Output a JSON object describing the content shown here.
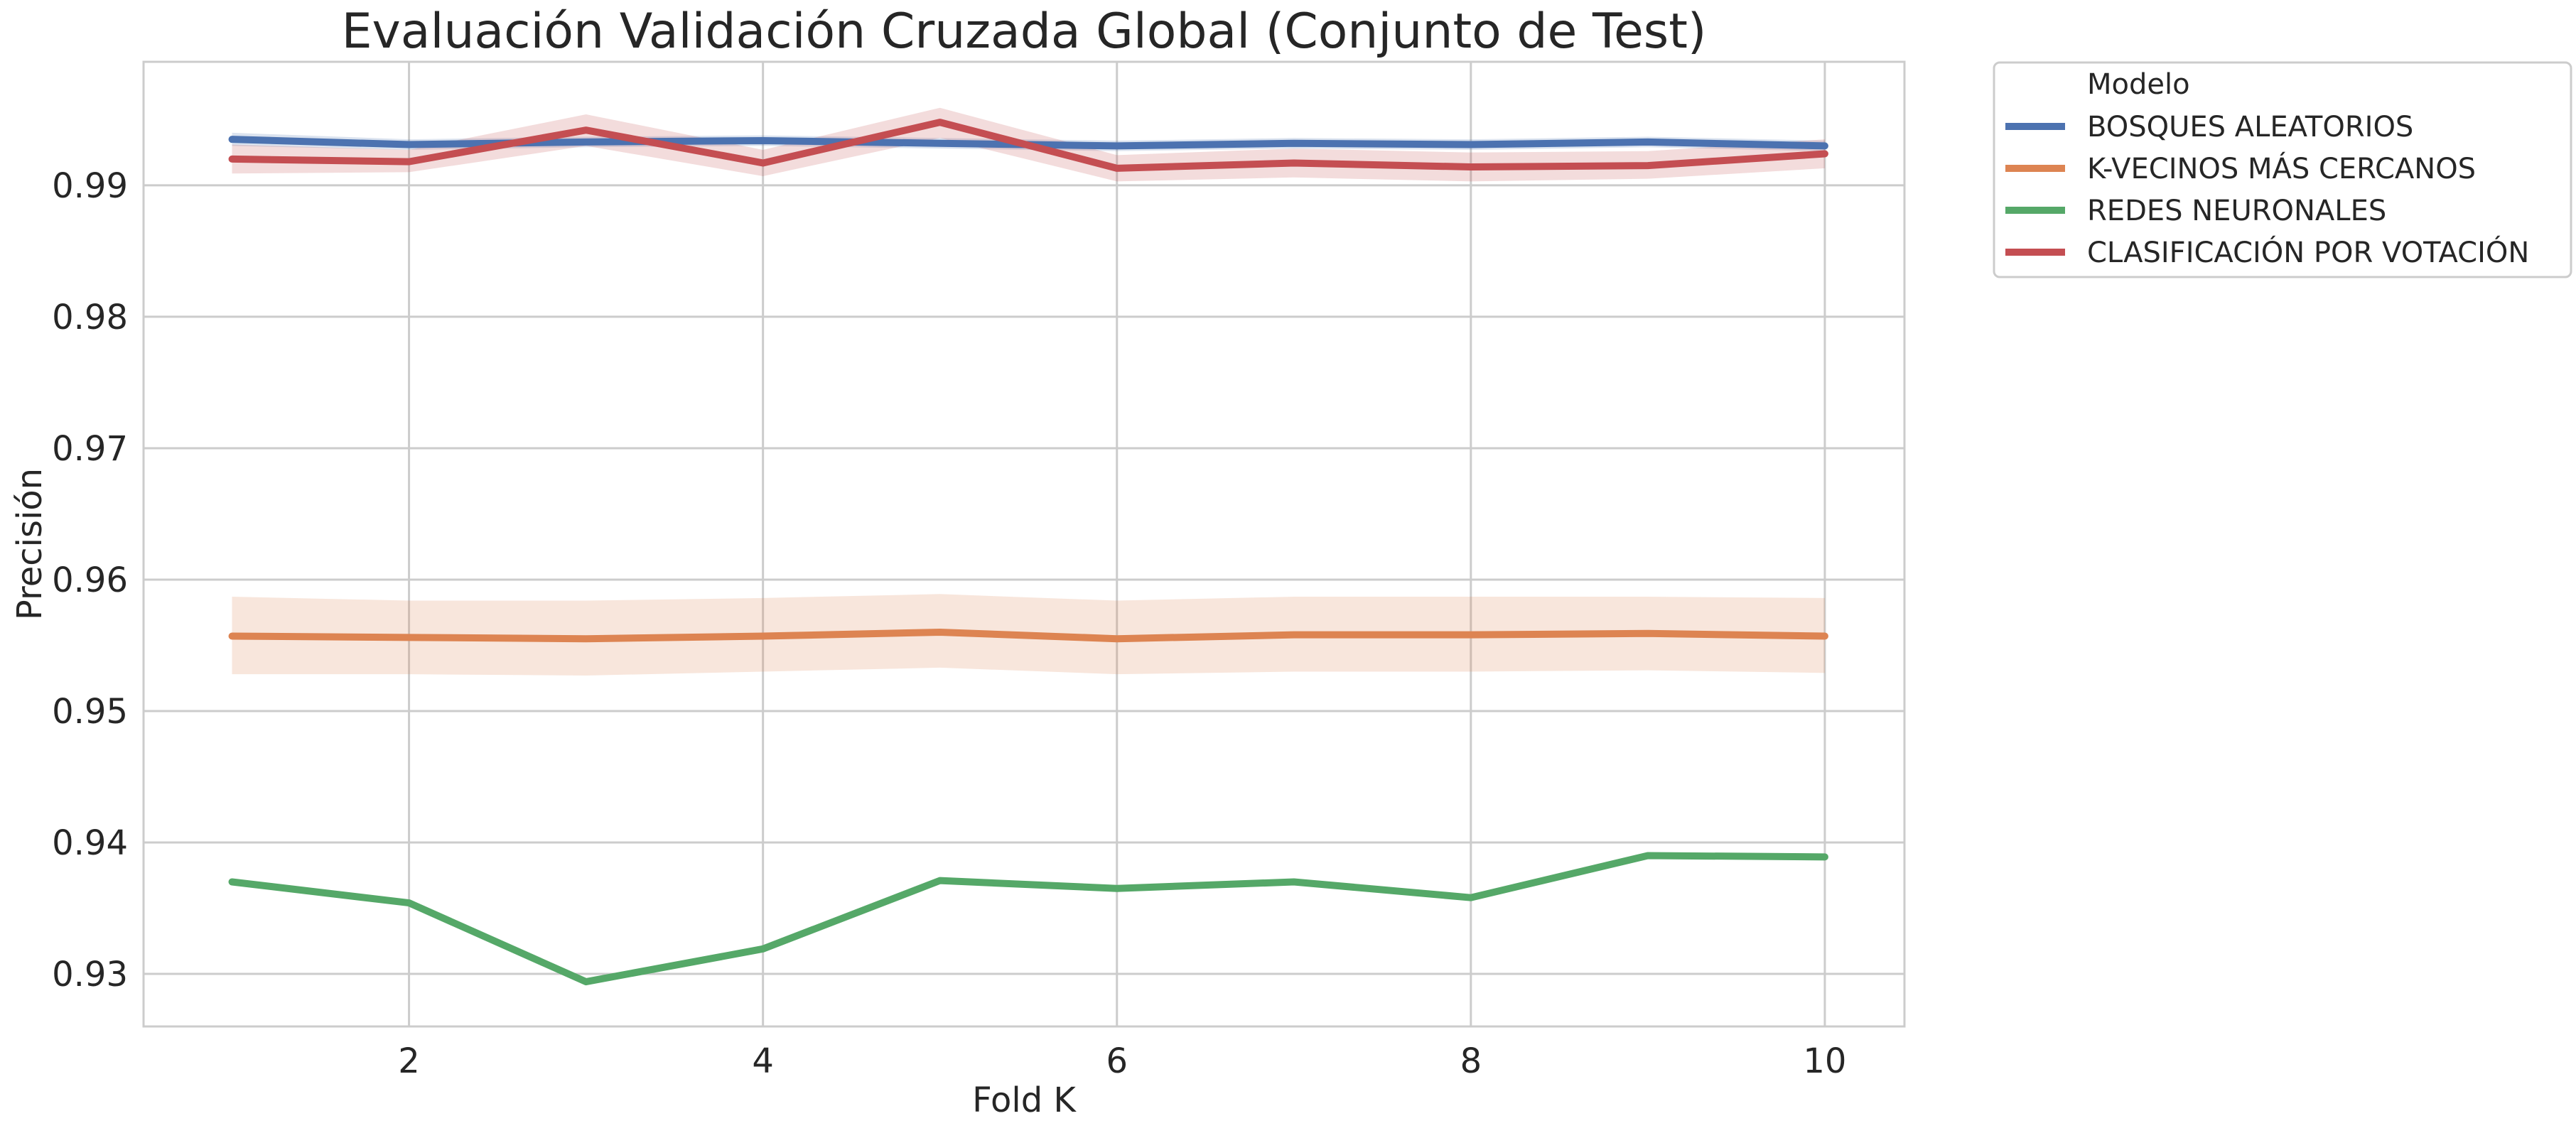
{
  "chart_data": {
    "type": "line",
    "title": "Evaluación Validación Cruzada Global (Conjunto de Test)",
    "xlabel": "Fold K",
    "ylabel": "Precisión",
    "xlim": [
      0.5,
      10.45
    ],
    "ylim": [
      0.926,
      0.9994
    ],
    "x": [
      1,
      2,
      3,
      4,
      5,
      6,
      7,
      8,
      9,
      10
    ],
    "x_ticks": [
      2,
      4,
      6,
      8,
      10
    ],
    "y_ticks": [
      0.93,
      0.94,
      0.95,
      0.96,
      0.97,
      0.98,
      0.99
    ],
    "grid": true,
    "legend_title": "Modelo",
    "legend_position": "outside top-right",
    "series": [
      {
        "name": "BOSQUES ALEATORIOS",
        "color": "#4c72b0",
        "values": [
          0.9935,
          0.9931,
          0.9933,
          0.9934,
          0.9932,
          0.993,
          0.9932,
          0.9931,
          0.9933,
          0.993
        ],
        "ci_low": [
          0.993,
          0.9927,
          0.9929,
          0.993,
          0.9928,
          0.9926,
          0.9928,
          0.9927,
          0.9929,
          0.9926
        ],
        "ci_high": [
          0.994,
          0.9935,
          0.9937,
          0.9938,
          0.9936,
          0.9934,
          0.9936,
          0.9935,
          0.9937,
          0.9934
        ]
      },
      {
        "name": "K-VECINOS MÁS CERCANOS",
        "color": "#dd8452",
        "values": [
          0.9557,
          0.9556,
          0.9555,
          0.9557,
          0.956,
          0.9555,
          0.9558,
          0.9558,
          0.9559,
          0.9557
        ],
        "ci_low": [
          0.9528,
          0.9528,
          0.9527,
          0.953,
          0.9533,
          0.9528,
          0.953,
          0.953,
          0.9531,
          0.9529
        ],
        "ci_high": [
          0.9587,
          0.9584,
          0.9584,
          0.9586,
          0.9589,
          0.9584,
          0.9587,
          0.9587,
          0.9587,
          0.9586
        ]
      },
      {
        "name": "REDES NEURONALES",
        "color": "#55a868",
        "values": [
          0.937,
          0.9354,
          0.9294,
          0.9319,
          0.9371,
          0.9365,
          0.937,
          0.9358,
          0.939,
          0.9389
        ]
      },
      {
        "name": "CLASIFICACIÓN POR VOTACIÓN",
        "color": "#c44e52",
        "values": [
          0.992,
          0.9918,
          0.9942,
          0.9917,
          0.9948,
          0.9913,
          0.9917,
          0.9914,
          0.9915,
          0.9924
        ],
        "ci_low": [
          0.9909,
          0.991,
          0.993,
          0.9907,
          0.9936,
          0.9903,
          0.9906,
          0.9903,
          0.9905,
          0.9913
        ],
        "ci_high": [
          0.9931,
          0.9927,
          0.9954,
          0.9927,
          0.9959,
          0.9923,
          0.9928,
          0.9925,
          0.9926,
          0.9935
        ]
      }
    ]
  }
}
